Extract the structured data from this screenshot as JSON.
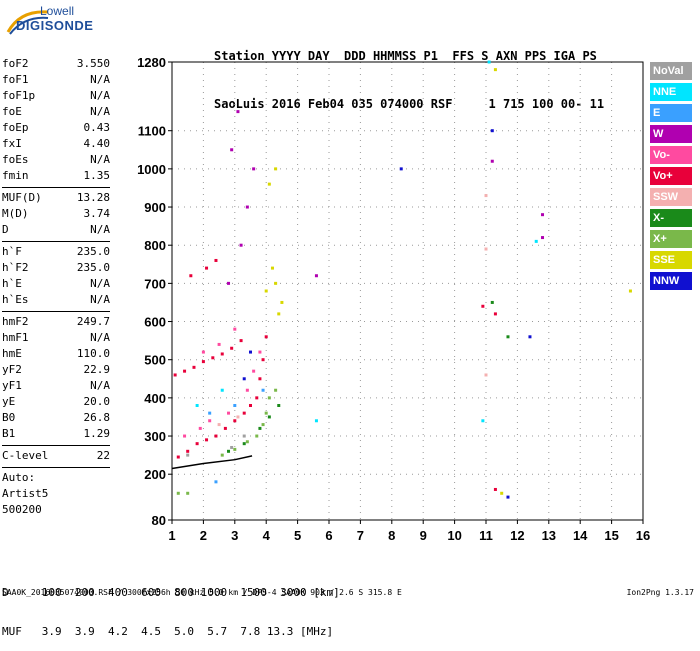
{
  "logo": {
    "line1": "Lowell",
    "line2": "DIGISONDE"
  },
  "header": {
    "line1": "Station YYYY DAY  DDD HHMMSS P1  FFS S AXN PPS IGA PS",
    "line2": "SaoLuis 2016 Feb04 035 074000 RSF     1 715 100 00- 11"
  },
  "params_group1": [
    {
      "k": "foF2",
      "v": "3.550"
    },
    {
      "k": "foF1",
      "v": "N/A"
    },
    {
      "k": "foF1p",
      "v": "N/A"
    },
    {
      "k": "foE",
      "v": "N/A"
    },
    {
      "k": "foEp",
      "v": "0.43"
    },
    {
      "k": "fxI",
      "v": "4.40"
    },
    {
      "k": "foEs",
      "v": "N/A"
    },
    {
      "k": "fmin",
      "v": "1.35"
    }
  ],
  "params_group2": [
    {
      "k": "MUF(D)",
      "v": "13.28"
    },
    {
      "k": "M(D)",
      "v": "3.74"
    },
    {
      "k": "D",
      "v": "N/A"
    }
  ],
  "params_group3": [
    {
      "k": "h`F",
      "v": "235.0"
    },
    {
      "k": "h`F2",
      "v": "235.0"
    },
    {
      "k": "h`E",
      "v": "N/A"
    },
    {
      "k": "h`Es",
      "v": "N/A"
    }
  ],
  "params_group4": [
    {
      "k": "hmF2",
      "v": "249.7"
    },
    {
      "k": "hmF1",
      "v": "N/A"
    },
    {
      "k": "hmE",
      "v": "110.0"
    },
    {
      "k": "yF2",
      "v": "22.9"
    },
    {
      "k": "yF1",
      "v": "N/A"
    },
    {
      "k": "yE",
      "v": "20.0"
    },
    {
      "k": "B0",
      "v": "26.8"
    },
    {
      "k": "B1",
      "v": "1.29"
    }
  ],
  "params_group5": [
    {
      "k": "C-level",
      "v": "22"
    }
  ],
  "params_group6": [
    {
      "k": "Auto:",
      "v": ""
    },
    {
      "k": "Artist5",
      "v": ""
    },
    {
      "k": "500200",
      "v": ""
    }
  ],
  "legend": [
    {
      "label": "NoVal",
      "bg": "#a0a0a0",
      "fg": "#ffffff"
    },
    {
      "label": "NNE",
      "bg": "#00e5ff",
      "fg": "#ffffff"
    },
    {
      "label": "E",
      "bg": "#3aa0ff",
      "fg": "#ffffff"
    },
    {
      "label": "W",
      "bg": "#b000b0",
      "fg": "#ffffff"
    },
    {
      "label": "Vo-",
      "bg": "#ff4aa0",
      "fg": "#ffffff"
    },
    {
      "label": "Vo+",
      "bg": "#e8003a",
      "fg": "#ffffff"
    },
    {
      "label": "SSW",
      "bg": "#f4b0b0",
      "fg": "#ffffff"
    },
    {
      "label": "X-",
      "bg": "#1a8a1a",
      "fg": "#ffffff"
    },
    {
      "label": "X+",
      "bg": "#7ab84a",
      "fg": "#ffffff"
    },
    {
      "label": "SSE",
      "bg": "#d8d800",
      "fg": "#ffffff"
    },
    {
      "label": "NNW",
      "bg": "#1010d0",
      "fg": "#ffffff"
    }
  ],
  "footer": {
    "row1": "D     100  200  400  600  800 1000  1500  3000 [km]",
    "row2": "MUF   3.9  3.9  4.2  4.5  5.0  5.7  7.8 13.3 [MHz]",
    "file": "SAA0K_2016035074000.RSF / 300fx256h 50 kHz 5.0 km / DPS-4 SAA0K 903 / 2.6 S 315.8 E",
    "version": "Ion2Png 1.3.17"
  },
  "chart_data": {
    "type": "scatter",
    "title": "",
    "xlabel": "",
    "ylabel": "",
    "xlim": [
      1,
      16
    ],
    "ylim": [
      80,
      1280
    ],
    "x_ticks": [
      1,
      2,
      3,
      4,
      5,
      6,
      7,
      8,
      9,
      10,
      11,
      12,
      13,
      14,
      15,
      16
    ],
    "y_ticks": [
      80,
      200,
      300,
      400,
      500,
      600,
      700,
      800,
      900,
      1000,
      1100,
      1280
    ],
    "grid": "dotted",
    "series": [
      {
        "name": "Vo+",
        "color": "#e8003a",
        "points": [
          [
            1.2,
            245
          ],
          [
            1.5,
            260
          ],
          [
            1.8,
            280
          ],
          [
            2.1,
            290
          ],
          [
            2.4,
            300
          ],
          [
            2.7,
            320
          ],
          [
            3.0,
            340
          ],
          [
            3.3,
            360
          ],
          [
            3.5,
            380
          ],
          [
            3.7,
            400
          ],
          [
            3.8,
            450
          ],
          [
            3.9,
            500
          ],
          [
            4.0,
            560
          ],
          [
            1.1,
            460
          ],
          [
            1.4,
            470
          ],
          [
            1.7,
            480
          ],
          [
            2.0,
            495
          ],
          [
            2.3,
            505
          ],
          [
            2.6,
            515
          ],
          [
            2.9,
            530
          ],
          [
            3.2,
            550
          ],
          [
            1.6,
            720
          ],
          [
            2.1,
            740
          ],
          [
            2.4,
            760
          ],
          [
            10.9,
            640
          ],
          [
            11.3,
            620
          ],
          [
            11.3,
            160
          ]
        ]
      },
      {
        "name": "Vo-",
        "color": "#ff4aa0",
        "points": [
          [
            1.4,
            300
          ],
          [
            1.9,
            320
          ],
          [
            2.2,
            340
          ],
          [
            2.8,
            360
          ],
          [
            3.4,
            420
          ],
          [
            3.6,
            470
          ],
          [
            3.8,
            520
          ],
          [
            2.0,
            520
          ],
          [
            2.5,
            540
          ],
          [
            3.0,
            580
          ]
        ]
      },
      {
        "name": "X+",
        "color": "#7ab84a",
        "points": [
          [
            2.6,
            250
          ],
          [
            3.0,
            265
          ],
          [
            3.4,
            285
          ],
          [
            3.7,
            300
          ],
          [
            3.9,
            330
          ],
          [
            4.0,
            360
          ],
          [
            4.1,
            400
          ],
          [
            4.3,
            420
          ],
          [
            1.2,
            150
          ],
          [
            1.5,
            150
          ]
        ]
      },
      {
        "name": "X-",
        "color": "#1a8a1a",
        "points": [
          [
            2.8,
            260
          ],
          [
            3.3,
            280
          ],
          [
            3.8,
            320
          ],
          [
            4.1,
            350
          ],
          [
            4.4,
            380
          ],
          [
            11.2,
            650
          ],
          [
            11.7,
            560
          ]
        ]
      },
      {
        "name": "SSE",
        "color": "#d8d800",
        "points": [
          [
            4.0,
            680
          ],
          [
            4.3,
            700
          ],
          [
            4.5,
            650
          ],
          [
            4.2,
            740
          ],
          [
            4.4,
            620
          ],
          [
            4.1,
            960
          ],
          [
            4.3,
            1000
          ],
          [
            11.3,
            1260
          ],
          [
            11.5,
            150
          ],
          [
            15.6,
            680
          ]
        ]
      },
      {
        "name": "W",
        "color": "#b000b0",
        "points": [
          [
            2.8,
            700
          ],
          [
            3.2,
            800
          ],
          [
            3.4,
            900
          ],
          [
            3.6,
            1000
          ],
          [
            2.9,
            1050
          ],
          [
            3.1,
            1150
          ],
          [
            12.8,
            880
          ],
          [
            12.8,
            820
          ],
          [
            5.6,
            720
          ],
          [
            11.2,
            1020
          ]
        ]
      },
      {
        "name": "NNW",
        "color": "#1010d0",
        "points": [
          [
            3.3,
            450
          ],
          [
            3.5,
            520
          ],
          [
            8.3,
            1000
          ],
          [
            12.4,
            560
          ],
          [
            11.7,
            140
          ],
          [
            11.2,
            1100
          ]
        ]
      },
      {
        "name": "NNE",
        "color": "#00e5ff",
        "points": [
          [
            1.8,
            380
          ],
          [
            2.6,
            420
          ],
          [
            5.6,
            340
          ],
          [
            10.9,
            340
          ],
          [
            12.6,
            810
          ],
          [
            11.1,
            1280
          ]
        ]
      },
      {
        "name": "E",
        "color": "#3aa0ff",
        "points": [
          [
            2.2,
            360
          ],
          [
            3.0,
            380
          ],
          [
            3.9,
            420
          ],
          [
            2.4,
            180
          ]
        ]
      },
      {
        "name": "SSW",
        "color": "#f4b0b0",
        "points": [
          [
            2.5,
            330
          ],
          [
            3.1,
            350
          ],
          [
            11.0,
            460
          ],
          [
            11.0,
            790
          ],
          [
            11.0,
            930
          ]
        ]
      },
      {
        "name": "NoVal",
        "color": "#a0a0a0",
        "points": [
          [
            1.5,
            250
          ],
          [
            2.9,
            270
          ],
          [
            3.3,
            300
          ]
        ]
      }
    ],
    "leading_edge": [
      [
        1.0,
        215
      ],
      [
        2.0,
        228
      ],
      [
        3.0,
        238
      ],
      [
        3.55,
        248
      ]
    ]
  }
}
